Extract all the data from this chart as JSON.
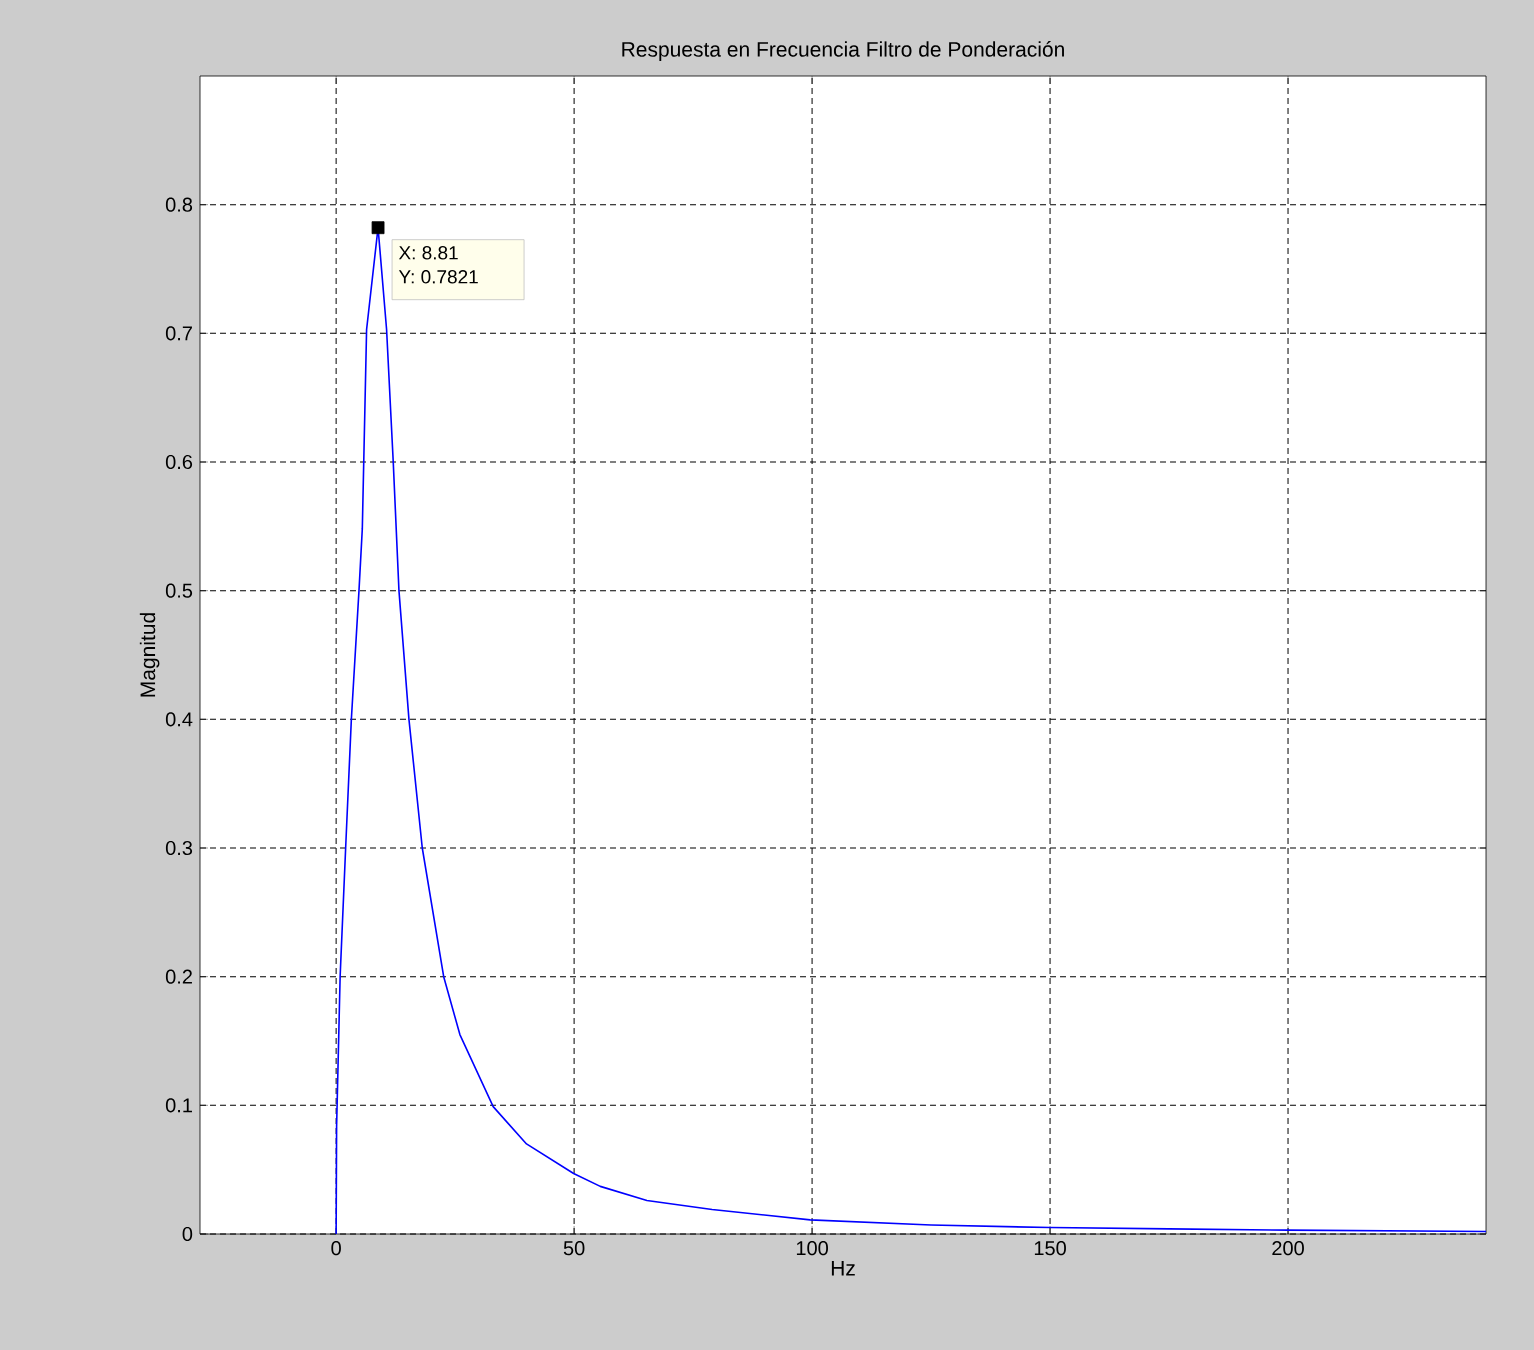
{
  "chart_data": {
    "type": "line",
    "title": "Respuesta en Frecuencia Filtro de Ponderación",
    "xlabel": "Hz",
    "ylabel": "Magnitud",
    "series": [
      {
        "color": "#0000ff",
        "x": [
          0,
          0.1,
          0.84,
          2.0,
          3.2,
          4.8,
          5.5,
          6.4,
          8.81,
          10.6,
          12.0,
          13.2,
          15.3,
          18.1,
          22.6,
          26,
          33,
          40,
          49.9,
          55.5,
          65.3,
          79,
          99.6,
          125,
          150,
          175,
          200,
          241.6
        ],
        "values": [
          0,
          0.084,
          0.2,
          0.3,
          0.4,
          0.5,
          0.548,
          0.703,
          0.7821,
          0.703,
          0.6,
          0.5,
          0.4,
          0.3,
          0.2,
          0.155,
          0.099,
          0.07,
          0.047,
          0.037,
          0.026,
          0.019,
          0.011,
          0.007,
          0.005,
          0.004,
          0.003,
          0.002
        ]
      }
    ],
    "annotations": [
      {
        "text": "X: 8.81",
        "x": 8.81,
        "y": 0.7821
      },
      {
        "text": "Y: 0.7821",
        "x": 8.81,
        "y": 0.7821
      }
    ],
    "xlim": [
      -28.6,
      241.6
    ],
    "ylim": [
      0,
      0.9
    ],
    "xticks": [
      0,
      50,
      100,
      150,
      200
    ],
    "yticks": [
      0,
      0.1,
      0.2,
      0.3,
      0.4,
      0.5,
      0.6,
      0.7,
      0.8
    ],
    "grid": true,
    "marker": "none",
    "line_style": "solid"
  }
}
